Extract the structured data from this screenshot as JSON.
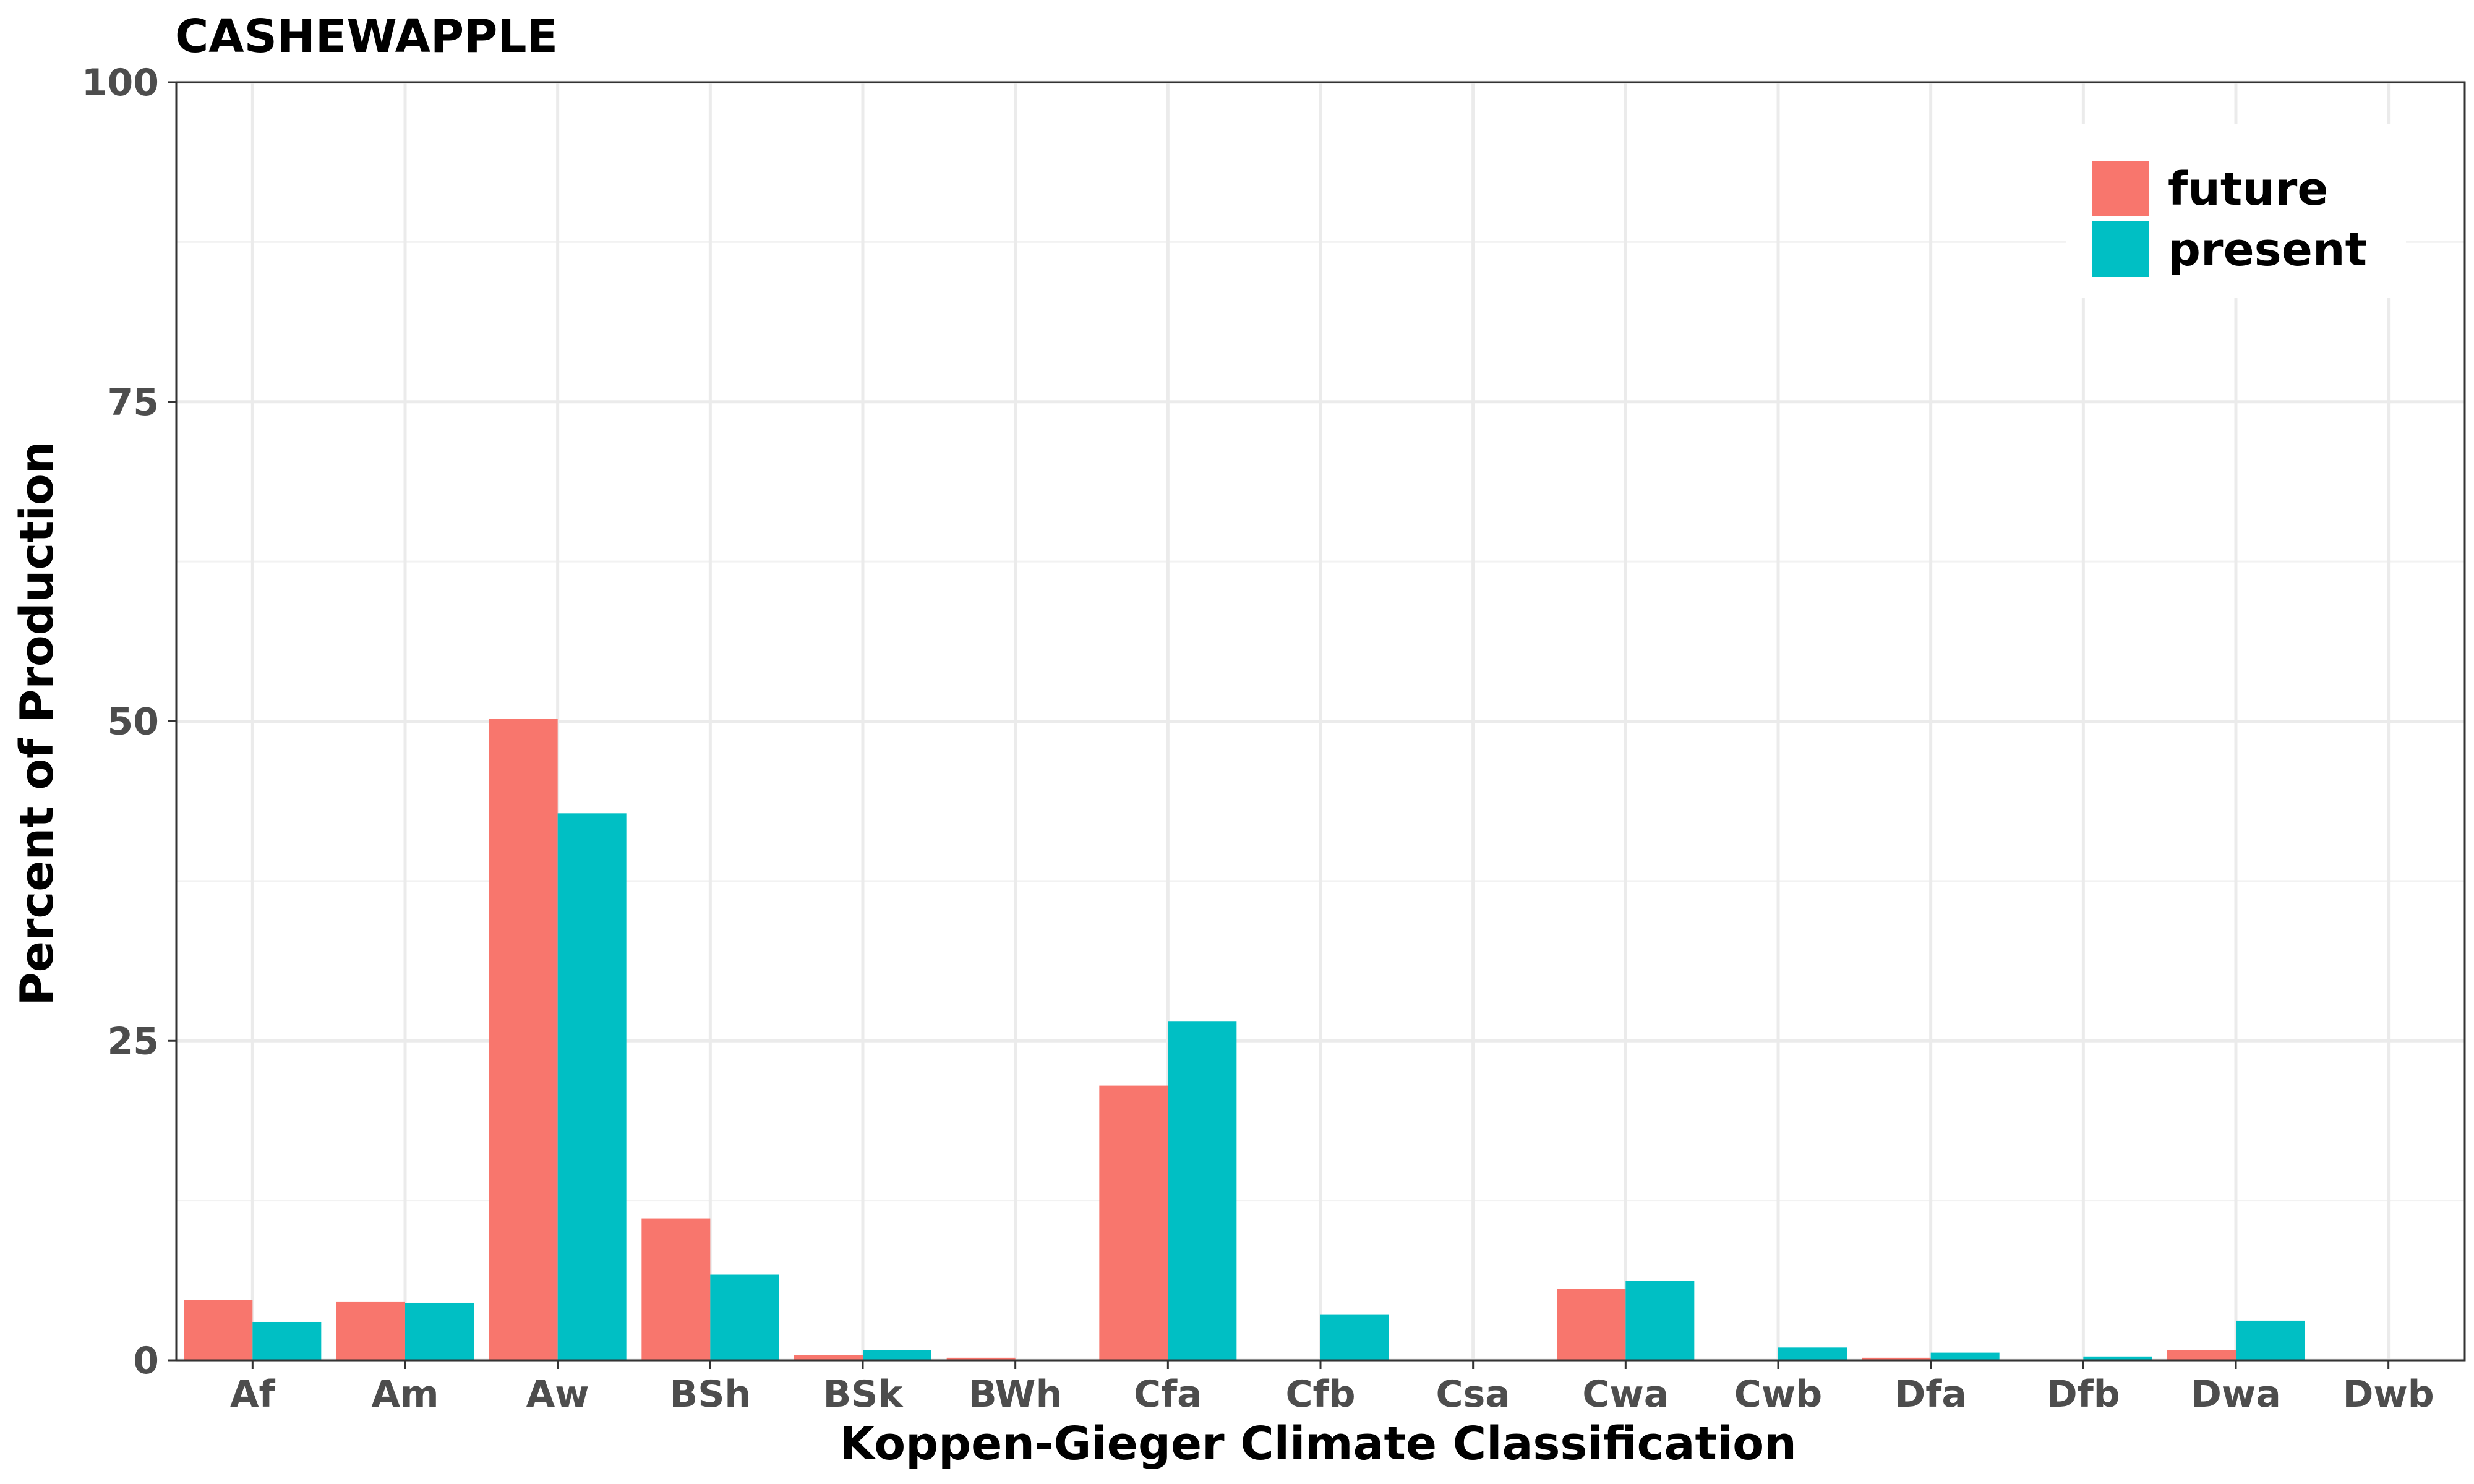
{
  "chart_data": {
    "type": "bar",
    "title": "CASHEWAPPLE",
    "xlabel": "Koppen-Gieger Climate Classification",
    "ylabel": "Percent of Production",
    "categories": [
      "Af",
      "Am",
      "Aw",
      "BSh",
      "BSk",
      "BWh",
      "Cfa",
      "Cfb",
      "Csa",
      "Cwa",
      "Cwb",
      "Dfa",
      "Dfb",
      "Dwa",
      "Dwb"
    ],
    "series": [
      {
        "name": "future",
        "color": "#F8766D",
        "values": [
          4.7,
          4.6,
          50.2,
          11.1,
          0.4,
          0.2,
          21.5,
          0,
          0,
          5.6,
          0,
          0.2,
          0,
          0.8,
          0
        ]
      },
      {
        "name": "present",
        "color": "#00BFC4",
        "values": [
          3.0,
          4.5,
          42.8,
          6.7,
          0.8,
          0,
          26.5,
          3.6,
          0,
          6.2,
          1.0,
          0.6,
          0.3,
          3.1,
          0
        ]
      }
    ],
    "ylim": [
      0,
      100
    ],
    "yticks": [
      "0",
      "25",
      "50",
      "75",
      "100"
    ],
    "grid": true,
    "legend_position": "top-right"
  }
}
